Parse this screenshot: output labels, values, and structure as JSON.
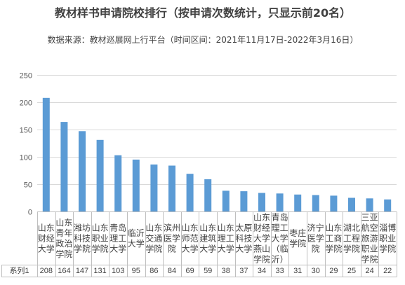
{
  "chart_data": {
    "type": "bar",
    "title": "教材样书申请院校排行（按申请次数统计，只显示前20名）",
    "subtitle": "数据来源：教材巡展网上行平台（时间区间：2021年11月17日-2022年3月16日）",
    "categories": [
      "山东财经大学",
      "山东青年政治学院",
      "潍坊科技学院",
      "山东职业学院",
      "青岛理工大学",
      "临沂大学",
      "山东交通学院",
      "滨州医学院",
      "山东师范大学",
      "山东建筑大学",
      "山东理工大学",
      "太原科技大学",
      "山东财经大学燕山学院",
      "青岛理工大学（临沂）",
      "枣庄学院",
      "济宁医学院",
      "山东工商学院",
      "湖北工程学院",
      "三亚航空旅游职业学院",
      "淄博职业学院"
    ],
    "series": [
      {
        "name": "系列1",
        "values": [
          208,
          164,
          147,
          131,
          103,
          95,
          86,
          84,
          69,
          59,
          38,
          37,
          34,
          33,
          31,
          30,
          29,
          25,
          24,
          22
        ],
        "color": "#5B9BD5"
      }
    ],
    "ylim": [
      0,
      250
    ],
    "yticks": [
      0,
      50,
      100,
      150,
      200,
      250
    ],
    "grid": true,
    "data_table": true
  }
}
